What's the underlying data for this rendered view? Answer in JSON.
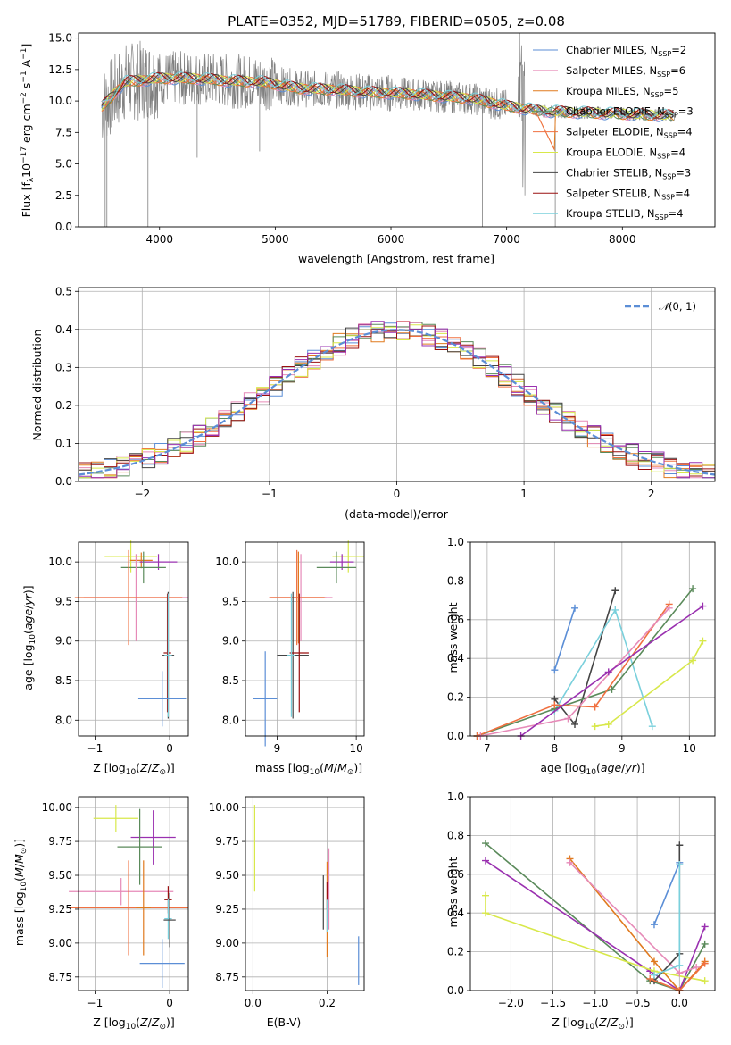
{
  "colors": {
    "chabrier_miles": "#5b8ed6",
    "salpeter_miles": "#e68ab8",
    "kroupa_miles": "#e07a1f",
    "chabrier_elodie": "#5a8a5a",
    "salpeter_elodie": "#f07040",
    "kroupa_elodie": "#d8e84a",
    "chabrier_stelib": "#444444",
    "salpeter_stelib": "#9a1010",
    "kroupa_stelib": "#7ad0dc",
    "purple": "#9a30b0",
    "data": "#808080",
    "normal": "#5b8ed6"
  },
  "chart_data": [
    {
      "id": "spectrum",
      "type": "line",
      "title": "PLATE=0352, MJD=51789, FIBERID=0505, z=0.08",
      "xlabel": "wavelength [Angstrom, rest frame]",
      "ylabel": "Flux [f$_\\lambda$10$^{-17}$ erg cm$^{-2}$ s$^{-1}$ A$^{-1}$]",
      "xlim": [
        3300,
        8800
      ],
      "ylim": [
        0,
        15.4
      ],
      "xticks": [
        "4000",
        "5000",
        "6000",
        "7000",
        "8000"
      ],
      "yticks": [
        "0.0",
        "2.5",
        "5.0",
        "7.5",
        "10.0",
        "12.5",
        "15.0"
      ],
      "grid": false,
      "legend": "top-right",
      "series": [
        {
          "name": "Chabrier MILES, N$_{SSP}$=2"
        },
        {
          "name": "Salpeter MILES, N$_{SSP}$=6"
        },
        {
          "name": "Kroupa MILES, N$_{SSP}$=5"
        },
        {
          "name": "Chabrier ELODIE, N$_{SSP}$=3"
        },
        {
          "name": "Salpeter ELODIE, N$_{SSP}$=4"
        },
        {
          "name": "Kroupa ELODIE, N$_{SSP}$=4"
        },
        {
          "name": "Chabrier STELIB, N$_{SSP}$=3"
        },
        {
          "name": "Salpeter STELIB, N$_{SSP}$=4"
        },
        {
          "name": "Kroupa STELIB, N$_{SSP}$=4"
        }
      ],
      "model_curve": {
        "x": [
          3500,
          3700,
          4000,
          4300,
          4600,
          4900,
          5200,
          5500,
          5800,
          6100,
          6400,
          6700,
          7000,
          7300,
          7600,
          7900,
          8200,
          8500
        ],
        "y": [
          9.5,
          11.5,
          11.8,
          11.8,
          11.6,
          11.5,
          11.0,
          10.9,
          10.7,
          10.6,
          10.4,
          10.2,
          9.6,
          9.2,
          9.1,
          9.0,
          8.9,
          8.8
        ]
      }
    },
    {
      "id": "residuals",
      "type": "line",
      "xlabel": "(data-model)/error",
      "ylabel": "Normed distribution",
      "xlim": [
        -2.5,
        2.5
      ],
      "ylim": [
        0,
        0.51
      ],
      "xticks": [
        "−2",
        "−1",
        "0",
        "1",
        "2"
      ],
      "yticks": [
        "0.0",
        "0.1",
        "0.2",
        "0.3",
        "0.4",
        "0.5"
      ],
      "grid": true,
      "legend": "top-right",
      "normal_label": "$\\mathcal{N}(0,1)$"
    },
    {
      "id": "age_vs_Z",
      "type": "scatter",
      "xlabel": "Z [log$_{10}$(Z/Z$_\\odot$)]",
      "ylabel": "age  [log$_{10}$(age/yr)]",
      "xlim": [
        -1.22,
        0.25
      ],
      "ylim": [
        7.8,
        10.25
      ],
      "xticks": [
        "−1",
        "0"
      ],
      "yticks": [
        "8.0",
        "8.5",
        "9.0",
        "9.5",
        "10.0"
      ],
      "grid": true,
      "points": [
        {
          "x": -0.52,
          "y": 10.07,
          "xerr": 0.35,
          "yerr": 0.2,
          "c": "kroupa_elodie"
        },
        {
          "x": -0.38,
          "y": 10.02,
          "xerr": 0.15,
          "yerr": 0.1,
          "c": "kroupa_miles"
        },
        {
          "x": -0.15,
          "y": 10.0,
          "xerr": 0.25,
          "yerr": 0.1,
          "c": "purple"
        },
        {
          "x": -0.35,
          "y": 9.93,
          "xerr": 0.3,
          "yerr": 0.2,
          "c": "chabrier_elodie"
        },
        {
          "x": -0.45,
          "y": 9.55,
          "xerr": 0.7,
          "yerr": 0.55,
          "c": "salpeter_miles"
        },
        {
          "x": -0.55,
          "y": 9.55,
          "xerr": 0.72,
          "yerr": 0.6,
          "c": "salpeter_elodie"
        },
        {
          "x": -0.02,
          "y": 8.82,
          "xerr": 0.08,
          "yerr": 0.8,
          "c": "chabrier_stelib"
        },
        {
          "x": -0.03,
          "y": 8.85,
          "xerr": 0.05,
          "yerr": 0.75,
          "c": "salpeter_stelib"
        },
        {
          "x": -0.02,
          "y": 8.82,
          "xerr": 0.05,
          "yerr": 0.78,
          "c": "kroupa_stelib"
        },
        {
          "x": -0.1,
          "y": 8.27,
          "xerr": 0.32,
          "yerr": 0.35,
          "c": "chabrier_miles"
        }
      ]
    },
    {
      "id": "age_vs_mass",
      "type": "scatter",
      "xlabel": "mass [log$_{10}$(M/M$_\\odot$)]",
      "ylabel": "",
      "xlim": [
        8.6,
        10.1
      ],
      "ylim": [
        7.8,
        10.25
      ],
      "xticks": [
        "9",
        "10"
      ],
      "yticks": [
        "8.0",
        "8.5",
        "9.0",
        "9.5",
        "10.0"
      ],
      "grid": true,
      "points": [
        {
          "x": 9.9,
          "y": 10.07,
          "xerr": 0.2,
          "yerr": 0.2,
          "c": "kroupa_elodie"
        },
        {
          "x": 9.82,
          "y": 10.0,
          "xerr": 0.15,
          "yerr": 0.1,
          "c": "purple"
        },
        {
          "x": 9.75,
          "y": 9.93,
          "xerr": 0.25,
          "yerr": 0.2,
          "c": "chabrier_elodie"
        },
        {
          "x": 9.27,
          "y": 9.55,
          "xerr": 0.35,
          "yerr": 0.58,
          "c": "kroupa_miles"
        },
        {
          "x": 9.3,
          "y": 9.55,
          "xerr": 0.4,
          "yerr": 0.55,
          "c": "salpeter_miles"
        },
        {
          "x": 9.25,
          "y": 9.55,
          "xerr": 0.35,
          "yerr": 0.6,
          "c": "salpeter_elodie"
        },
        {
          "x": 9.2,
          "y": 8.82,
          "xerr": 0.2,
          "yerr": 0.8,
          "c": "chabrier_stelib"
        },
        {
          "x": 9.28,
          "y": 8.85,
          "xerr": 0.12,
          "yerr": 0.75,
          "c": "salpeter_stelib"
        },
        {
          "x": 9.18,
          "y": 8.82,
          "xerr": 0.05,
          "yerr": 0.78,
          "c": "kroupa_stelib"
        },
        {
          "x": 8.85,
          "y": 8.27,
          "xerr": 0.15,
          "yerr": 0.6,
          "c": "chabrier_miles"
        }
      ]
    },
    {
      "id": "weight_vs_age",
      "type": "line",
      "xlabel": "age  [log$_{10}$(age/yr)]",
      "ylabel": "mass weight",
      "xlim": [
        6.75,
        10.38
      ],
      "ylim": [
        0,
        1.0
      ],
      "xticks": [
        "7",
        "8",
        "9",
        "10"
      ],
      "yticks": [
        "0.0",
        "0.2",
        "0.4",
        "0.6",
        "0.8",
        "1.0"
      ],
      "grid": true,
      "series": [
        {
          "c": "chabrier_miles",
          "x": [
            8.0,
            8.3
          ],
          "y": [
            0.34,
            0.66
          ]
        },
        {
          "c": "chabrier_stelib",
          "x": [
            8.0,
            8.3,
            8.9
          ],
          "y": [
            0.19,
            0.06,
            0.75
          ]
        },
        {
          "c": "kroupa_stelib",
          "x": [
            8.0,
            8.9,
            9.45
          ],
          "y": [
            0.13,
            0.65,
            0.05
          ]
        },
        {
          "c": "chabrier_elodie",
          "x": [
            6.85,
            8.0,
            8.85,
            10.05
          ],
          "y": [
            0.0,
            0.14,
            0.24,
            0.76
          ]
        },
        {
          "c": "salpeter_elodie",
          "x": [
            6.85,
            8.0,
            8.6,
            9.7
          ],
          "y": [
            0.0,
            0.16,
            0.15,
            0.68
          ]
        },
        {
          "c": "salpeter_miles",
          "x": [
            6.9,
            8.2,
            9.7
          ],
          "y": [
            0.0,
            0.09,
            0.66
          ]
        },
        {
          "c": "purple",
          "x": [
            7.5,
            8.8,
            10.2
          ],
          "y": [
            0.0,
            0.33,
            0.67
          ]
        },
        {
          "c": "kroupa_elodie",
          "x": [
            8.6,
            8.8,
            10.05,
            10.2
          ],
          "y": [
            0.05,
            0.06,
            0.39,
            0.49
          ]
        }
      ]
    },
    {
      "id": "mass_vs_Z",
      "type": "scatter",
      "xlabel": "Z [log$_{10}$(Z/Z$_\\odot$)]",
      "ylabel": "mass [log$_{10}$(M/M$_\\odot$)]",
      "xlim": [
        -1.22,
        0.25
      ],
      "ylim": [
        8.65,
        10.08
      ],
      "xticks": [
        "−1",
        "0"
      ],
      "yticks": [
        "8.75",
        "9.00",
        "9.25",
        "9.50",
        "9.75",
        "10.00"
      ],
      "grid": true,
      "points": [
        {
          "x": -0.72,
          "y": 9.92,
          "xerr": 0.3,
          "yerr": 0.1,
          "c": "kroupa_elodie"
        },
        {
          "x": -0.22,
          "y": 9.78,
          "xerr": 0.3,
          "yerr": 0.2,
          "c": "purple"
        },
        {
          "x": -0.4,
          "y": 9.71,
          "xerr": 0.3,
          "yerr": 0.28,
          "c": "chabrier_elodie"
        },
        {
          "x": -0.65,
          "y": 9.38,
          "xerr": 0.7,
          "yerr": 0.1,
          "c": "salpeter_miles"
        },
        {
          "x": -0.55,
          "y": 9.26,
          "xerr": 0.8,
          "yerr": 0.35,
          "c": "salpeter_elodie"
        },
        {
          "x": -0.35,
          "y": 9.26,
          "xerr": 0.1,
          "yerr": 0.35,
          "c": "kroupa_miles"
        },
        {
          "x": -0.02,
          "y": 9.32,
          "xerr": 0.05,
          "yerr": 0.1,
          "c": "salpeter_stelib"
        },
        {
          "x": -0.02,
          "y": 9.18,
          "xerr": 0.05,
          "yerr": 0.15,
          "c": "kroupa_stelib"
        },
        {
          "x": 0.0,
          "y": 9.17,
          "xerr": 0.08,
          "yerr": 0.2,
          "c": "chabrier_stelib"
        },
        {
          "x": -0.1,
          "y": 8.85,
          "xerr": 0.3,
          "yerr": 0.18,
          "c": "chabrier_miles"
        }
      ]
    },
    {
      "id": "mass_vs_EBV",
      "type": "scatter",
      "xlabel": "E(B-V)",
      "ylabel": "",
      "xlim": [
        -0.02,
        0.3
      ],
      "ylim": [
        8.65,
        10.08
      ],
      "xticks": [
        "0.0",
        "0.2"
      ],
      "yticks": [
        "8.75",
        "9.00",
        "9.25",
        "9.50",
        "9.75",
        "10.00"
      ],
      "grid": true,
      "points": [
        {
          "x": 0.005,
          "y": 9.7,
          "xerr": 0,
          "yerr": 0.32,
          "c": "kroupa_elodie"
        },
        {
          "x": 0.19,
          "y": 9.3,
          "xerr": 0,
          "yerr": 0.2,
          "c": "chabrier_stelib"
        },
        {
          "x": 0.205,
          "y": 9.4,
          "xerr": 0,
          "yerr": 0.3,
          "c": "salpeter_miles"
        },
        {
          "x": 0.2,
          "y": 9.25,
          "xerr": 0,
          "yerr": 0.35,
          "c": "kroupa_miles"
        },
        {
          "x": 0.2,
          "y": 9.35,
          "xerr": 0,
          "yerr": 0.1,
          "c": "salpeter_stelib"
        },
        {
          "x": 0.2,
          "y": 9.2,
          "xerr": 0,
          "yerr": 0.12,
          "c": "kroupa_stelib"
        },
        {
          "x": 0.285,
          "y": 8.87,
          "xerr": 0,
          "yerr": 0.18,
          "c": "chabrier_miles"
        }
      ]
    },
    {
      "id": "weight_vs_Z",
      "type": "line",
      "xlabel": "Z [log$_{10}$(Z/Z$_\\odot$)]",
      "ylabel": "mass weight",
      "xlim": [
        -2.48,
        0.42
      ],
      "ylim": [
        0,
        1.0
      ],
      "xticks": [
        "−2.0",
        "−1.5",
        "−1.0",
        "−0.5",
        "0.0"
      ],
      "yticks": [
        "0.0",
        "0.2",
        "0.4",
        "0.6",
        "0.8",
        "1.0"
      ],
      "grid": true,
      "series": [
        {
          "c": "chabrier_elodie",
          "x": [
            -2.3,
            -0.35,
            0.0,
            0.3
          ],
          "y": [
            0.76,
            0.05,
            0.0,
            0.24
          ]
        },
        {
          "c": "purple",
          "x": [
            -2.3,
            -0.35,
            0.0,
            0.3
          ],
          "y": [
            0.67,
            0.1,
            0.0,
            0.33
          ]
        },
        {
          "c": "kroupa_elodie",
          "x": [
            -2.3,
            -2.3,
            -0.3,
            0.3
          ],
          "y": [
            0.49,
            0.4,
            0.1,
            0.05
          ]
        },
        {
          "c": "kroupa_miles",
          "x": [
            -1.3,
            -0.3,
            0.0,
            0.3
          ],
          "y": [
            0.68,
            0.15,
            0.0,
            0.15
          ]
        },
        {
          "c": "salpeter_miles",
          "x": [
            -1.3,
            0.0,
            0.2
          ],
          "y": [
            0.66,
            0.09,
            0.12
          ]
        },
        {
          "c": "chabrier_miles",
          "x": [
            -0.3,
            0.0
          ],
          "y": [
            0.34,
            0.66
          ]
        },
        {
          "c": "chabrier_stelib",
          "x": [
            -0.3,
            0.0,
            0.0
          ],
          "y": [
            0.05,
            0.19,
            0.75
          ]
        },
        {
          "c": "kroupa_stelib",
          "x": [
            -0.3,
            0.0,
            0.0
          ],
          "y": [
            0.08,
            0.13,
            0.65
          ]
        },
        {
          "c": "salpeter_elodie",
          "x": [
            -0.35,
            0.0,
            0.3
          ],
          "y": [
            0.06,
            0.0,
            0.14
          ]
        }
      ]
    }
  ]
}
